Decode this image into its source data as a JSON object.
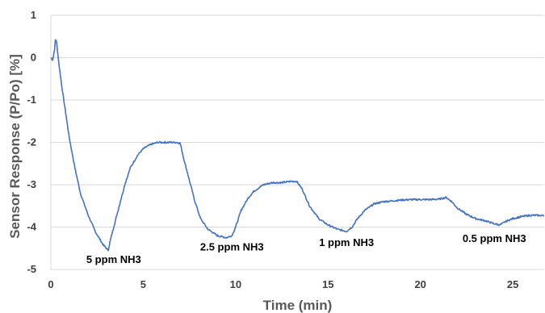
{
  "chart_data": {
    "type": "line",
    "title": "",
    "xlabel": "Time (min)",
    "ylabel": "Sensor Response (P/Po) [%]",
    "xlim": [
      0,
      26.7
    ],
    "ylim": [
      -5,
      1
    ],
    "x_ticks": [
      0,
      5,
      10,
      15,
      20,
      25
    ],
    "y_ticks": [
      1,
      0,
      -1,
      -2,
      -3,
      -4,
      -5
    ],
    "grid": "horizontal",
    "legend": "none",
    "line_color": "#4472c4",
    "series": [
      {
        "x": [
          0,
          0.1,
          0.2,
          0.25,
          0.3,
          0.35,
          0.45,
          0.6,
          0.8,
          1.0,
          1.3,
          1.6,
          2.0,
          2.4,
          2.8,
          3.0,
          3.1,
          3.2,
          3.4,
          3.7,
          4.0,
          4.3,
          4.7,
          5.0,
          5.4,
          5.8,
          6.2,
          6.6,
          6.8,
          7.0,
          7.2,
          7.5,
          7.8,
          8.1,
          8.5,
          9.0,
          9.5,
          9.8,
          10.0,
          10.3,
          10.7,
          11.0,
          11.5,
          12.0,
          12.5,
          13.0,
          13.3,
          13.6,
          14.0,
          14.5,
          15.0,
          15.5,
          16.0,
          16.3,
          16.6,
          17.0,
          17.5,
          18.0,
          18.5,
          19.0,
          19.5,
          20.0,
          20.5,
          21.0,
          21.4,
          21.7,
          22.0,
          22.5,
          23.0,
          23.5,
          24.0,
          24.3,
          24.7,
          25.0,
          25.5,
          26.0,
          26.7
        ],
        "y": [
          0,
          -0.05,
          0.2,
          0.42,
          0.4,
          0.2,
          -0.2,
          -0.7,
          -1.3,
          -1.9,
          -2.6,
          -3.2,
          -3.7,
          -4.1,
          -4.4,
          -4.5,
          -4.55,
          -4.35,
          -4.0,
          -3.5,
          -3.0,
          -2.6,
          -2.3,
          -2.15,
          -2.05,
          -2.0,
          -2.0,
          -2.0,
          -2.0,
          -2.02,
          -2.4,
          -2.9,
          -3.4,
          -3.8,
          -4.05,
          -4.2,
          -4.25,
          -4.2,
          -4.0,
          -3.6,
          -3.3,
          -3.15,
          -3.0,
          -2.95,
          -2.95,
          -2.92,
          -2.92,
          -3.1,
          -3.5,
          -3.8,
          -3.95,
          -4.05,
          -4.1,
          -4.0,
          -3.8,
          -3.6,
          -3.45,
          -3.4,
          -3.38,
          -3.36,
          -3.35,
          -3.35,
          -3.35,
          -3.34,
          -3.3,
          -3.4,
          -3.55,
          -3.7,
          -3.8,
          -3.85,
          -3.92,
          -3.95,
          -3.85,
          -3.8,
          -3.75,
          -3.72,
          -3.73
        ]
      }
    ],
    "annotations": [
      {
        "text": "5 ppm NH3",
        "x": 3.4,
        "y": -4.85
      },
      {
        "text": "2.5 ppm NH3",
        "x": 9.8,
        "y": -4.55
      },
      {
        "text": "1 ppm NH3",
        "x": 16.0,
        "y": -4.45
      },
      {
        "text": "0.5 ppm NH3",
        "x": 24.0,
        "y": -4.35
      }
    ]
  }
}
